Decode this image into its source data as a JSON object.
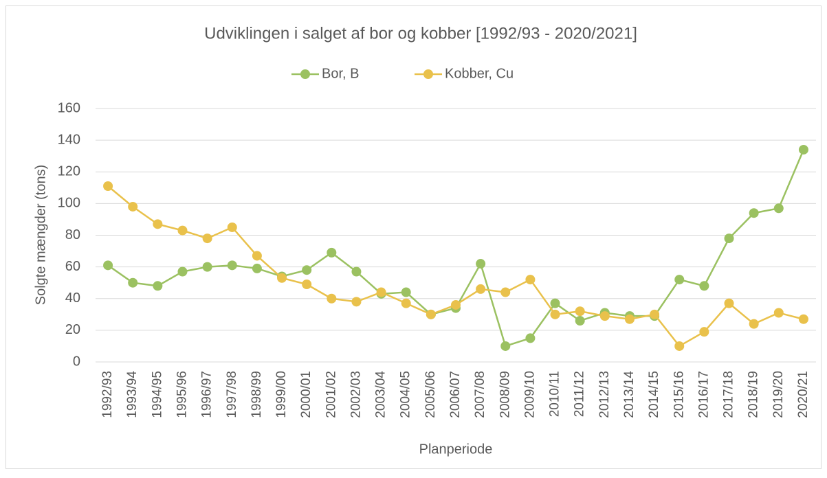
{
  "chart_data": {
    "type": "line",
    "title": "Udviklingen i salget af bor og kobber [1992/93 - 2020/2021]",
    "x_label": "Planperiode",
    "y_label": "Solgte mængder (tons)",
    "categories": [
      "1992/93",
      "1993/94",
      "1994/95",
      "1995/96",
      "1996/97",
      "1997/98",
      "1998/99",
      "1999/00",
      "2000/01",
      "2001/02",
      "2002/03",
      "2003/04",
      "2004/05",
      "2005/06",
      "2006/07",
      "2007/08",
      "2008/09",
      "2009/10",
      "2010/11",
      "2011/12",
      "2012/13",
      "2013/14",
      "2014/15",
      "2015/16",
      "2016/17",
      "2017/18",
      "2018/19",
      "2019/20",
      "2020/21"
    ],
    "series": [
      {
        "name": "Bor, B",
        "color": "#9bc161",
        "values": [
          61,
          50,
          48,
          57,
          60,
          61,
          59,
          54,
          58,
          69,
          57,
          43,
          44,
          30,
          34,
          62,
          10,
          15,
          37,
          26,
          31,
          29,
          29,
          52,
          48,
          78,
          94,
          97,
          134
        ]
      },
      {
        "name": "Kobber, Cu",
        "color": "#e9c14b",
        "values": [
          111,
          98,
          87,
          83,
          78,
          85,
          67,
          53,
          49,
          40,
          38,
          44,
          37,
          30,
          36,
          46,
          44,
          52,
          30,
          32,
          29,
          27,
          30,
          10,
          19,
          37,
          24,
          31,
          27
        ]
      }
    ],
    "ylim": [
      0,
      160
    ],
    "yticks": [
      0,
      20,
      40,
      60,
      80,
      100,
      120,
      140,
      160
    ],
    "grid": true,
    "legend": "top"
  }
}
